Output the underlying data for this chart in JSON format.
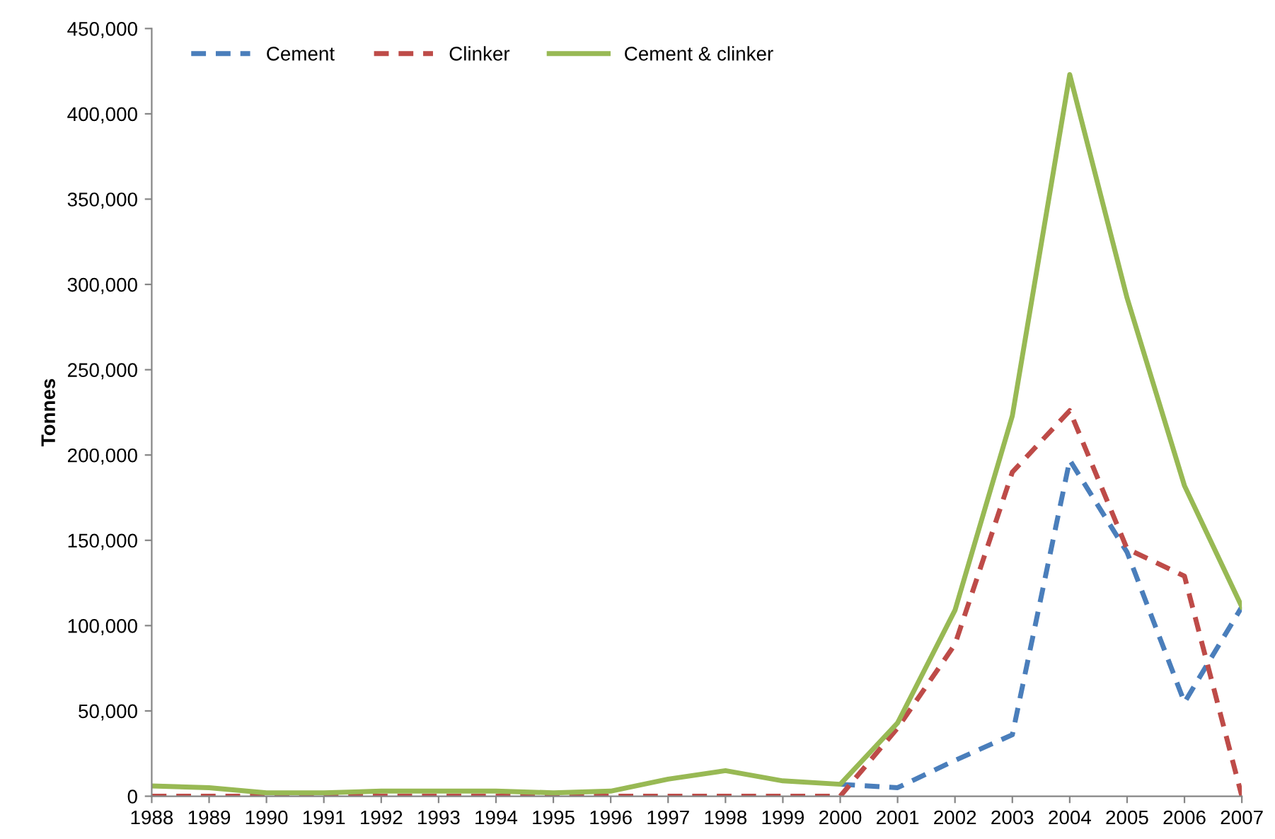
{
  "chart_data": {
    "type": "line",
    "ylabel": "Tonnes",
    "categories": [
      "1988",
      "1989",
      "1990",
      "1991",
      "1992",
      "1993",
      "1994",
      "1995",
      "1996",
      "1997",
      "1998",
      "1999",
      "2000",
      "2001",
      "2002",
      "2003",
      "2004",
      "2005",
      "2006",
      "2007"
    ],
    "series": [
      {
        "name": "Cement",
        "color": "#4a7ebb",
        "line_style": "dashed",
        "values": [
          null,
          null,
          null,
          null,
          null,
          null,
          null,
          null,
          null,
          null,
          null,
          null,
          7000,
          5000,
          21000,
          36000,
          197000,
          143000,
          55000,
          111000
        ]
      },
      {
        "name": "Clinker",
        "color": "#be4b48",
        "line_style": "dashed",
        "values": [
          0,
          0,
          0,
          0,
          0,
          0,
          0,
          0,
          0,
          0,
          0,
          0,
          0,
          40000,
          89000,
          190000,
          226000,
          145000,
          129000,
          0
        ]
      },
      {
        "name": "Cement & clinker",
        "color": "#98b954",
        "line_style": "solid",
        "values": [
          6000,
          5000,
          2000,
          2000,
          3000,
          3000,
          3000,
          2000,
          3000,
          10000,
          15000,
          9000,
          7000,
          43000,
          109000,
          223000,
          423000,
          292000,
          182000,
          111000
        ]
      }
    ],
    "ylim": [
      0,
      450000
    ],
    "yticks": [
      {
        "value": 0,
        "label": "0"
      },
      {
        "value": 50000,
        "label": "50,000"
      },
      {
        "value": 100000,
        "label": "100,000"
      },
      {
        "value": 150000,
        "label": "150,000"
      },
      {
        "value": 200000,
        "label": "200,000"
      },
      {
        "value": 250000,
        "label": "250,000"
      },
      {
        "value": 300000,
        "label": "300,000"
      },
      {
        "value": 350000,
        "label": "350,000"
      },
      {
        "value": 400000,
        "label": "400,000"
      },
      {
        "value": 450000,
        "label": "450,000"
      }
    ],
    "grid": false,
    "legend": "top left",
    "marker": "none"
  }
}
